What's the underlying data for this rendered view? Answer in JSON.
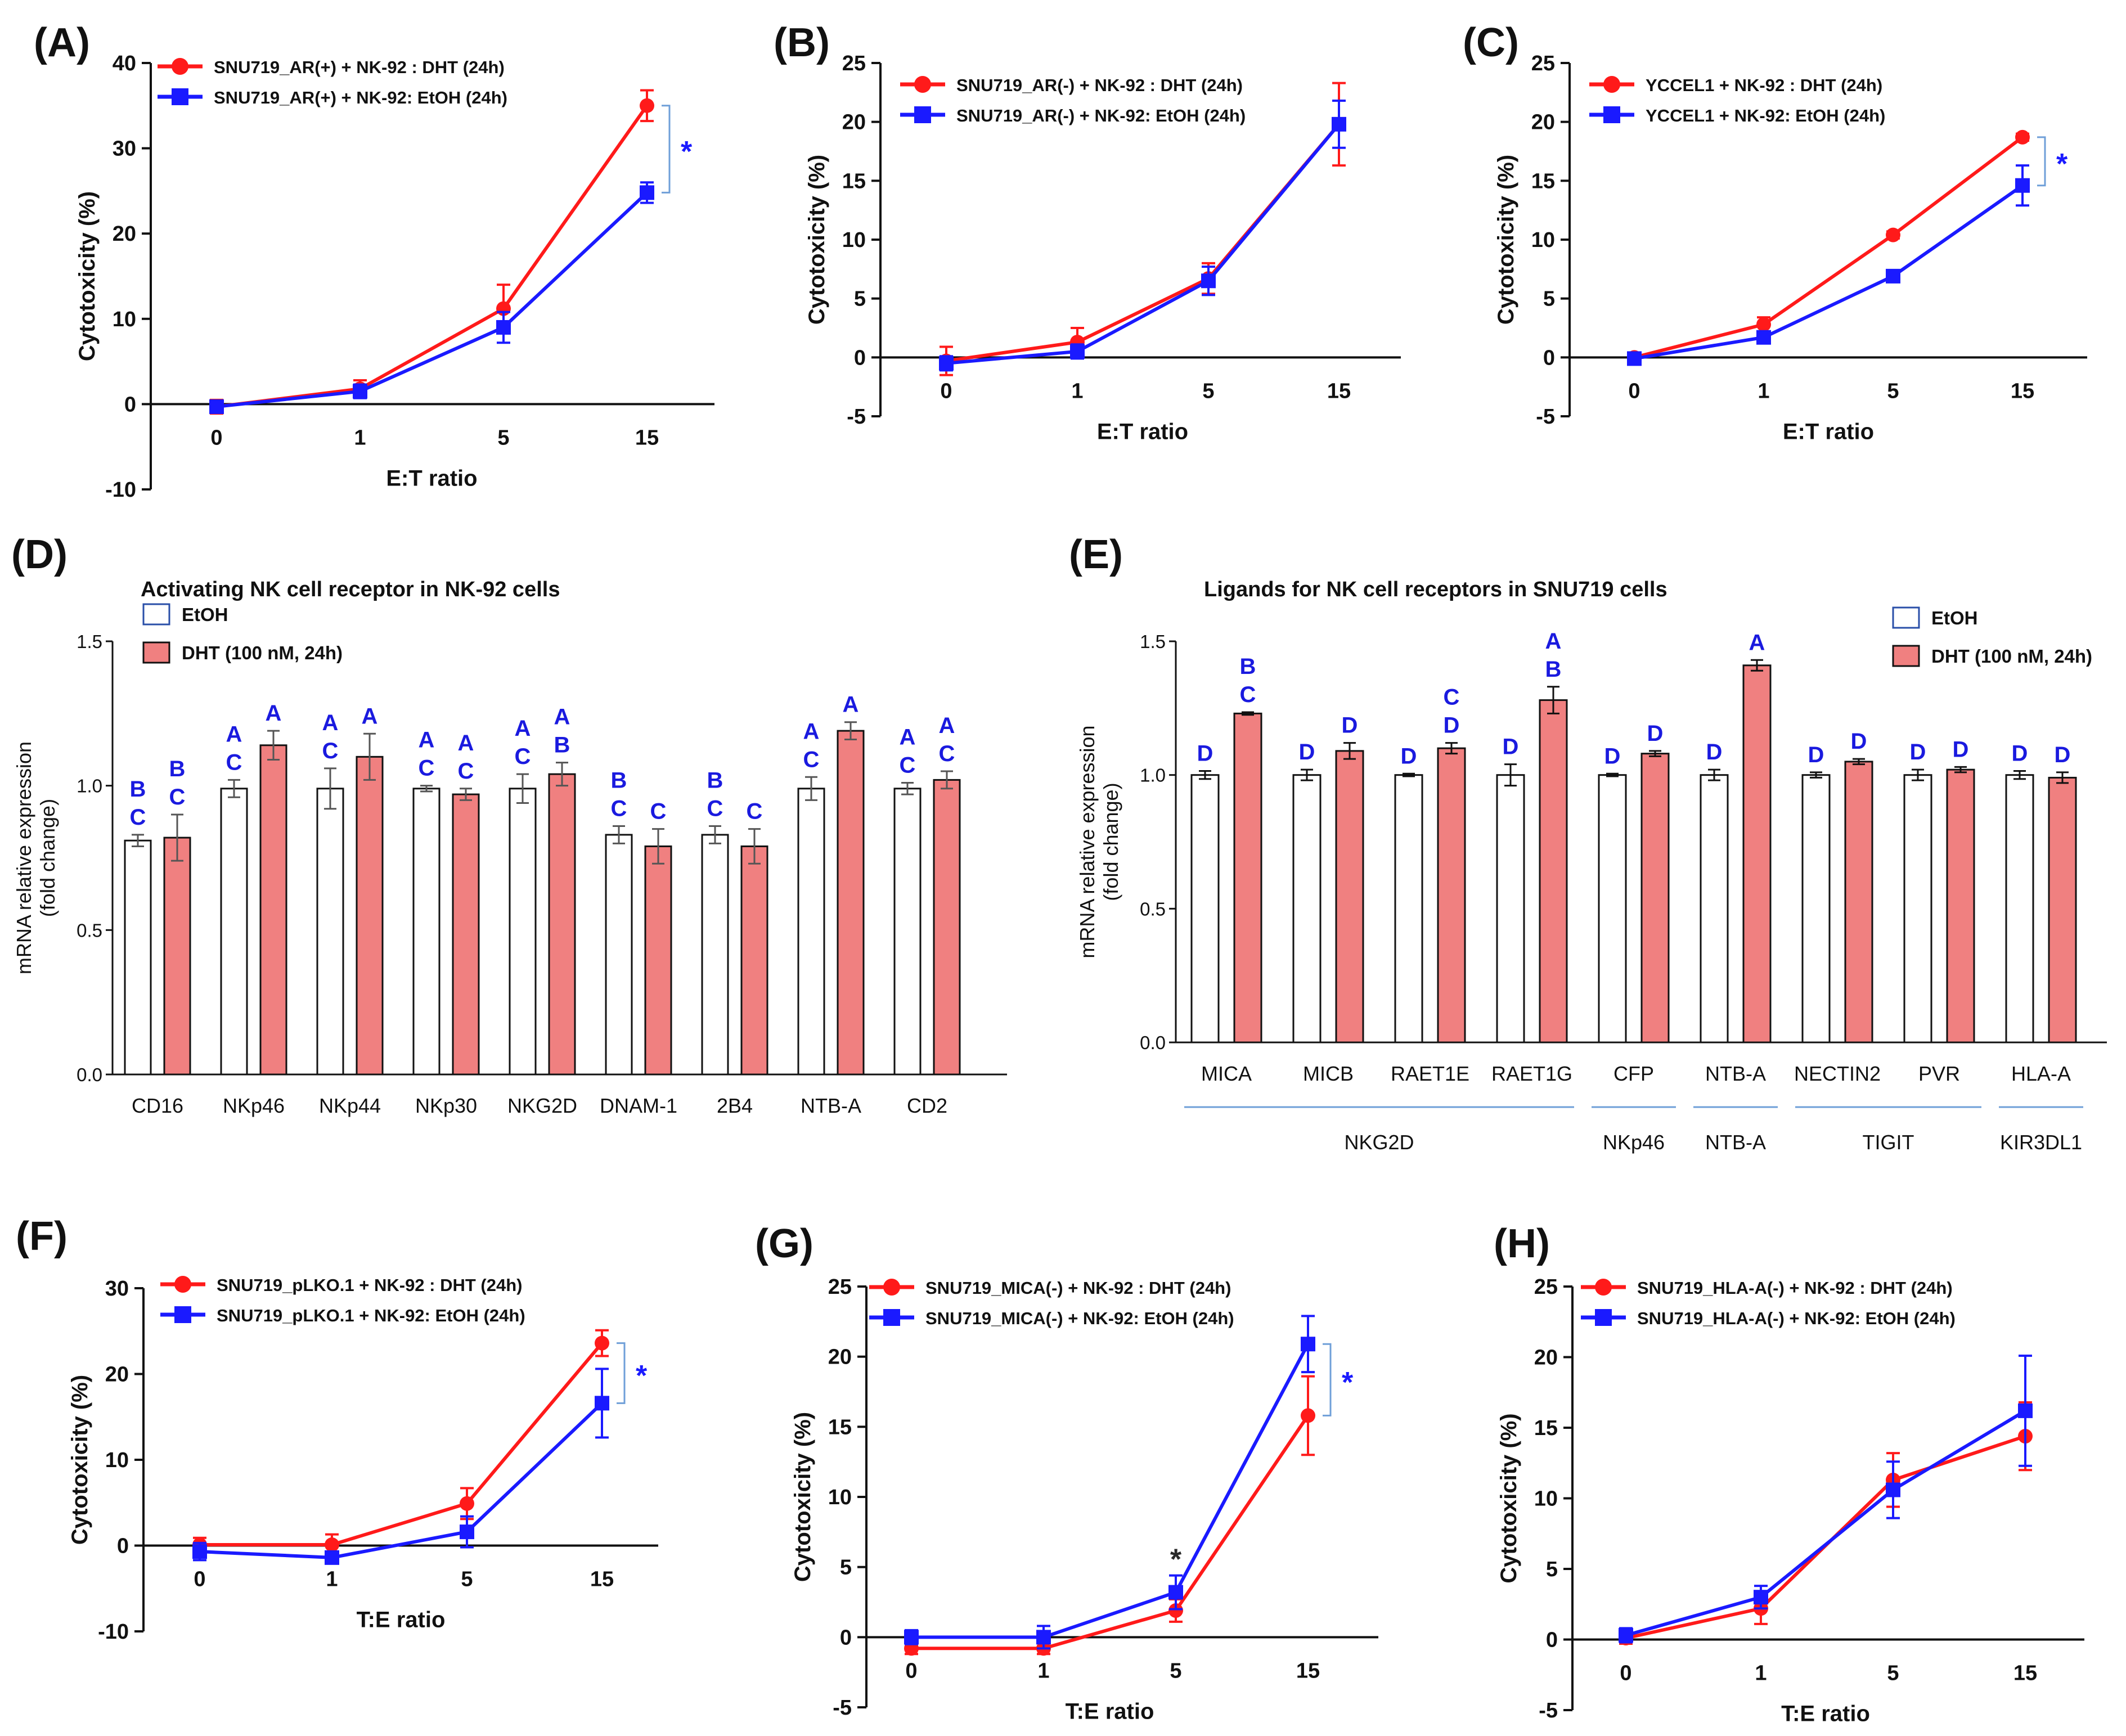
{
  "colors": {
    "dht": "#ff1a1a",
    "etoh": "#1a1aff",
    "bar_fill": "#f08080",
    "letter": "#1a1adf",
    "bracket": "#6f9fd8"
  },
  "chart_data": [
    {
      "id": "A",
      "type": "line",
      "panel_label": "(A)",
      "xlabel": "E:T ratio",
      "ylabel": "Cytotoxicity (%)",
      "categories": [
        "0",
        "1",
        "5",
        "15"
      ],
      "ylim": [
        -10,
        40
      ],
      "yticks": [
        -10,
        0,
        10,
        20,
        30,
        40
      ],
      "series": [
        {
          "name": "SNU719_AR(+) + NK-92 : DHT (24h)",
          "color": "dht",
          "marker": "circle",
          "values": [
            -0.3,
            1.8,
            11.2,
            35.0
          ],
          "errors": [
            0.8,
            1.0,
            2.8,
            1.8
          ]
        },
        {
          "name": "SNU719_AR(+) + NK-92: EtOH (24h)",
          "color": "etoh",
          "marker": "square",
          "values": [
            -0.3,
            1.5,
            9.0,
            24.8
          ],
          "errors": [
            0.5,
            0.8,
            1.8,
            1.2
          ]
        }
      ],
      "annotations": [
        {
          "text": "*",
          "type": "bracket",
          "x": "15",
          "y1": 35.0,
          "y2": 24.8
        }
      ]
    },
    {
      "id": "B",
      "type": "line",
      "panel_label": "(B)",
      "xlabel": "E:T ratio",
      "ylabel": "Cytotoxicity (%)",
      "categories": [
        "0",
        "1",
        "5",
        "15"
      ],
      "ylim": [
        -5,
        25
      ],
      "yticks": [
        -5,
        0,
        5,
        10,
        15,
        20,
        25
      ],
      "series": [
        {
          "name": "SNU719_AR(-) + NK-92 : DHT (24h)",
          "color": "dht",
          "marker": "circle",
          "values": [
            -0.3,
            1.3,
            6.7,
            19.8
          ],
          "errors": [
            1.2,
            1.2,
            1.3,
            3.5
          ]
        },
        {
          "name": "SNU719_AR(-) + NK-92: EtOH (24h)",
          "color": "etoh",
          "marker": "square",
          "values": [
            -0.5,
            0.5,
            6.5,
            19.8
          ],
          "errors": [
            0.6,
            0.6,
            1.2,
            2.0
          ]
        }
      ],
      "annotations": []
    },
    {
      "id": "C",
      "type": "line",
      "panel_label": "(C)",
      "xlabel": "E:T ratio",
      "ylabel": "Cytotoxicity (%)",
      "categories": [
        "0",
        "1",
        "5",
        "15"
      ],
      "ylim": [
        -5,
        25
      ],
      "yticks": [
        -5,
        0,
        5,
        10,
        15,
        20,
        25
      ],
      "series": [
        {
          "name": "YCCEL1 + NK-92 : DHT (24h)",
          "color": "dht",
          "marker": "circle",
          "values": [
            0,
            2.8,
            10.4,
            18.7
          ],
          "errors": [
            0.3,
            0.6,
            0.3,
            0.3
          ]
        },
        {
          "name": "YCCEL1 + NK-92: EtOH (24h)",
          "color": "etoh",
          "marker": "square",
          "values": [
            -0.1,
            1.7,
            6.9,
            14.6
          ],
          "errors": [
            0.2,
            0.3,
            0.3,
            1.7
          ]
        }
      ],
      "annotations": [
        {
          "text": "*",
          "type": "bracket",
          "x": "15",
          "y1": 18.7,
          "y2": 14.6
        }
      ]
    },
    {
      "id": "D",
      "type": "bar",
      "panel_label": "(D)",
      "title": "Activating NK cell receptor in NK-92 cells",
      "ylabel": "mRNA relative expression (fold change)",
      "ylim": [
        0,
        1.5
      ],
      "yticks": [
        "0.0",
        "0.5",
        "1.0",
        "1.5"
      ],
      "categories": [
        "CD16",
        "NKp46",
        "NKp44",
        "NKp30",
        "NKG2D",
        "DNAM-1",
        "2B4",
        "NTB-A",
        "CD2"
      ],
      "series": [
        {
          "name": "EtOH",
          "fill": "white",
          "values": [
            0.81,
            0.99,
            0.99,
            0.99,
            0.99,
            0.83,
            0.83,
            0.99,
            0.99
          ],
          "errors": [
            0.02,
            0.03,
            0.07,
            0.01,
            0.05,
            0.03,
            0.03,
            0.04,
            0.02
          ],
          "letters": [
            [
              "B",
              "C"
            ],
            [
              "A",
              "C"
            ],
            [
              "A",
              "C"
            ],
            [
              "A",
              "C"
            ],
            [
              "A",
              "C"
            ],
            [
              "B",
              "C"
            ],
            [
              "B",
              "C"
            ],
            [
              "A",
              "C"
            ],
            [
              "A",
              "C"
            ]
          ]
        },
        {
          "name": "DHT (100 nM, 24h)",
          "fill": "bar_fill",
          "values": [
            0.82,
            1.14,
            1.1,
            0.97,
            1.04,
            0.79,
            0.79,
            1.19,
            1.02
          ],
          "errors": [
            0.08,
            0.05,
            0.08,
            0.02,
            0.04,
            0.06,
            0.06,
            0.03,
            0.03
          ],
          "letters": [
            [
              "B",
              "C"
            ],
            [
              "A"
            ],
            [
              "A"
            ],
            [
              "A",
              "C"
            ],
            [
              "A",
              "B"
            ],
            [
              "C"
            ],
            [
              "C"
            ],
            [
              "A"
            ],
            [
              "A",
              "C"
            ]
          ]
        }
      ],
      "group_labels": []
    },
    {
      "id": "E",
      "type": "bar",
      "panel_label": "(E)",
      "title": "Ligands for NK cell receptors in SNU719 cells",
      "ylabel": "mRNA relative expression (fold change)",
      "ylim": [
        0,
        1.5
      ],
      "yticks": [
        "0.0",
        "0.5",
        "1.0",
        "1.5"
      ],
      "categories": [
        "MICA",
        "MICB",
        "RAET1E",
        "RAET1G",
        "CFP",
        "NTB-A",
        "NECTIN2",
        "PVR",
        "HLA-A"
      ],
      "series": [
        {
          "name": "EtOH",
          "fill": "white",
          "values": [
            1.0,
            1.0,
            1.0,
            1.0,
            1.0,
            1.0,
            1.0,
            1.0,
            1.0
          ],
          "errors": [
            0.015,
            0.02,
            0.005,
            0.04,
            0.005,
            0.02,
            0.01,
            0.02,
            0.015
          ],
          "letters": [
            [
              "D"
            ],
            [
              "D"
            ],
            [
              "D"
            ],
            [
              "D"
            ],
            [
              "D"
            ],
            [
              "D"
            ],
            [
              "D"
            ],
            [
              "D"
            ],
            [
              "D"
            ]
          ]
        },
        {
          "name": "DHT (100 nM, 24h)",
          "fill": "bar_fill",
          "values": [
            1.23,
            1.09,
            1.1,
            1.28,
            1.08,
            1.41,
            1.05,
            1.02,
            0.99
          ],
          "errors": [
            0.005,
            0.03,
            0.02,
            0.05,
            0.01,
            0.02,
            0.01,
            0.01,
            0.02
          ],
          "letters": [
            [
              "B",
              "C"
            ],
            [
              "D"
            ],
            [
              "C",
              "D"
            ],
            [
              "A",
              "B"
            ],
            [
              "D"
            ],
            [
              "A"
            ],
            [
              "D"
            ],
            [
              "D"
            ],
            [
              "D"
            ]
          ]
        }
      ],
      "group_labels": [
        {
          "label": "NKG2D",
          "from": 0,
          "to": 3
        },
        {
          "label": "NKp46",
          "from": 4,
          "to": 4
        },
        {
          "label": "NTB-A",
          "from": 5,
          "to": 5
        },
        {
          "label": "TIGIT",
          "from": 6,
          "to": 7
        },
        {
          "label": "KIR3DL1",
          "from": 8,
          "to": 8
        }
      ]
    },
    {
      "id": "F",
      "type": "line",
      "panel_label": "(F)",
      "xlabel": "T:E ratio",
      "ylabel": "Cytotoxicity (%)",
      "categories": [
        "0",
        "1",
        "5",
        "15"
      ],
      "ylim": [
        -10,
        30
      ],
      "yticks": [
        -10,
        0,
        10,
        20,
        30
      ],
      "series": [
        {
          "name": "SNU719_pLKO.1 + NK-92 : DHT (24h)",
          "color": "dht",
          "marker": "circle",
          "values": [
            0.1,
            0.1,
            4.9,
            23.6
          ],
          "errors": [
            0.8,
            1.2,
            1.8,
            1.5
          ]
        },
        {
          "name": "SNU719_pLKO.1 + NK-92: EtOH (24h)",
          "color": "etoh",
          "marker": "square",
          "values": [
            -0.7,
            -1.4,
            1.6,
            16.6
          ],
          "errors": [
            1.0,
            0.5,
            1.8,
            4.0
          ]
        }
      ],
      "annotations": [
        {
          "text": "*",
          "type": "bracket",
          "x": "15",
          "y1": 23.6,
          "y2": 16.6
        }
      ]
    },
    {
      "id": "G",
      "type": "line",
      "panel_label": "(G)",
      "xlabel": "T:E ratio",
      "ylabel": "Cytotoxicity (%)",
      "categories": [
        "0",
        "1",
        "5",
        "15"
      ],
      "ylim": [
        -5,
        25
      ],
      "yticks": [
        -5,
        0,
        5,
        10,
        15,
        20,
        25
      ],
      "series": [
        {
          "name": "SNU719_MICA(-) + NK-92 : DHT (24h)",
          "color": "dht",
          "marker": "circle",
          "values": [
            -0.8,
            -0.8,
            1.9,
            15.8
          ],
          "errors": [
            0.4,
            0.4,
            0.8,
            2.8
          ]
        },
        {
          "name": "SNU719_MICA(-) + NK-92: EtOH (24h)",
          "color": "etoh",
          "marker": "square",
          "values": [
            0,
            0,
            3.2,
            20.9
          ],
          "errors": [
            0.5,
            0.8,
            1.2,
            2.0
          ]
        }
      ],
      "annotations": [
        {
          "text": "*",
          "type": "bracket",
          "x": "15",
          "y1": 20.9,
          "y2": 15.8
        },
        {
          "text": "*",
          "type": "point",
          "x": "5",
          "y": 4.6
        }
      ]
    },
    {
      "id": "H",
      "type": "line",
      "panel_label": "(H)",
      "xlabel": "T:E ratio",
      "ylabel": "Cytotoxicity (%)",
      "categories": [
        "0",
        "1",
        "5",
        "15"
      ],
      "ylim": [
        -5,
        25
      ],
      "yticks": [
        -5,
        0,
        5,
        10,
        15,
        20,
        25
      ],
      "series": [
        {
          "name": "SNU719_HLA-A(-) + NK-92 : DHT (24h)",
          "color": "dht",
          "marker": "circle",
          "values": [
            0.1,
            2.2,
            11.3,
            14.4
          ],
          "errors": [
            0.4,
            1.1,
            1.9,
            2.4
          ]
        },
        {
          "name": "SNU719_HLA-A(-) + NK-92: EtOH (24h)",
          "color": "etoh",
          "marker": "square",
          "values": [
            0.3,
            3.0,
            10.6,
            16.2
          ],
          "errors": [
            0.5,
            0.8,
            2.0,
            3.9
          ]
        }
      ],
      "annotations": []
    }
  ]
}
